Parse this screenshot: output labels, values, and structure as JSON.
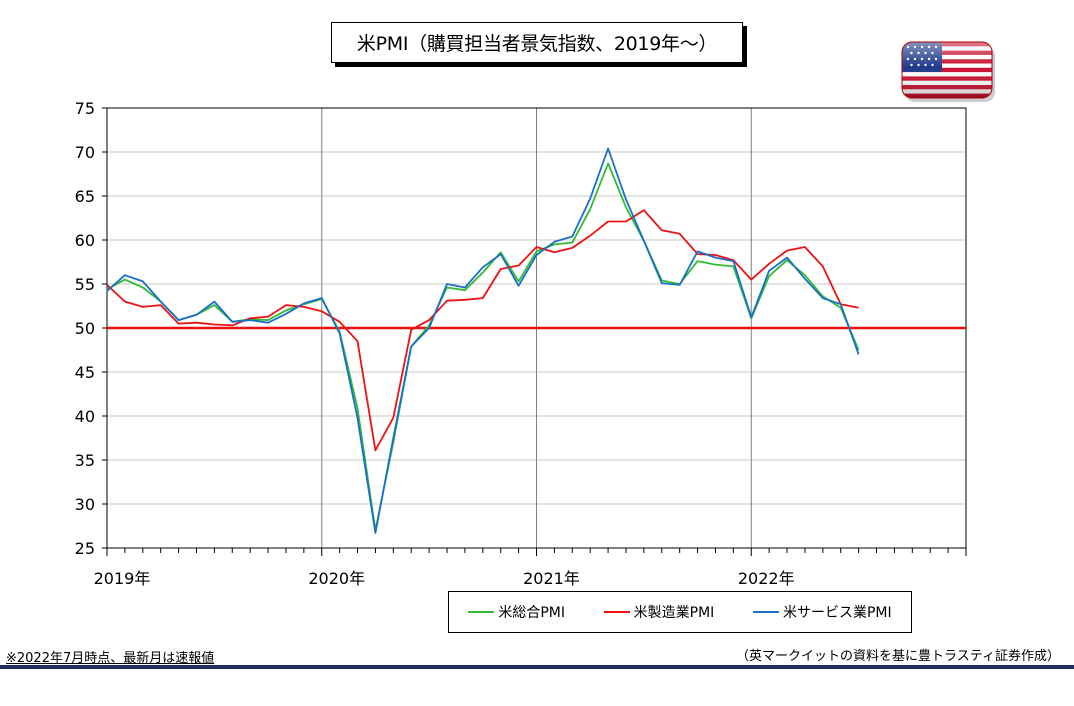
{
  "title": "米PMI（購買担当者景気指数、2019年～）",
  "footnote": "※2022年7月時点、最新月は速報値",
  "source": "（英マークイットの資料を基に豊トラスティ証券作成）",
  "flag_icon": "us-flag-icon",
  "colors": {
    "composite": "#33bb33",
    "manufacturing": "#ee1111",
    "services": "#1a6fc9",
    "reference": "#ee1111",
    "bottom_bar": "#1d2f5c"
  },
  "chart_data": {
    "type": "line",
    "title": "米PMI（購買担当者景気指数、2019年～）",
    "xlabel": "",
    "ylabel": "",
    "x_start": "2019-01",
    "x_end": "2022-12",
    "x_tick_labels": [
      "2019年",
      "2020年",
      "2021年",
      "2022年"
    ],
    "ylim": [
      25,
      75
    ],
    "y_ticks": [
      25,
      30,
      35,
      40,
      45,
      50,
      55,
      60,
      65,
      70,
      75
    ],
    "grid": true,
    "legend_position": "bottom-right",
    "reference_line": 50,
    "x": [
      "2019-01",
      "2019-02",
      "2019-03",
      "2019-04",
      "2019-05",
      "2019-06",
      "2019-07",
      "2019-08",
      "2019-09",
      "2019-10",
      "2019-11",
      "2019-12",
      "2020-01",
      "2020-02",
      "2020-03",
      "2020-04",
      "2020-05",
      "2020-06",
      "2020-07",
      "2020-08",
      "2020-09",
      "2020-10",
      "2020-11",
      "2020-12",
      "2021-01",
      "2021-02",
      "2021-03",
      "2021-04",
      "2021-05",
      "2021-06",
      "2021-07",
      "2021-08",
      "2021-09",
      "2021-10",
      "2021-11",
      "2021-12",
      "2022-01",
      "2022-02",
      "2022-03",
      "2022-04",
      "2022-05",
      "2022-06",
      "2022-07"
    ],
    "series": [
      {
        "name": "米総合PMI",
        "key": "composite",
        "values": [
          54.4,
          55.5,
          54.6,
          53.0,
          50.9,
          51.5,
          52.6,
          50.7,
          51.0,
          50.9,
          52.0,
          52.7,
          53.3,
          49.6,
          40.9,
          27.0,
          37.0,
          47.9,
          50.3,
          54.6,
          54.3,
          56.3,
          58.6,
          55.3,
          58.7,
          59.5,
          59.7,
          63.5,
          68.7,
          63.7,
          59.9,
          55.4,
          55.0,
          57.6,
          57.2,
          57.0,
          51.1,
          55.9,
          57.7,
          56.0,
          53.6,
          52.3,
          47.5
        ]
      },
      {
        "name": "米製造業PMI",
        "key": "manufacturing",
        "values": [
          54.9,
          53.0,
          52.4,
          52.6,
          50.5,
          50.6,
          50.4,
          50.3,
          51.1,
          51.3,
          52.6,
          52.4,
          51.9,
          50.7,
          48.5,
          36.1,
          39.8,
          49.8,
          50.9,
          53.1,
          53.2,
          53.4,
          56.7,
          57.1,
          59.2,
          58.6,
          59.1,
          60.5,
          62.1,
          62.1,
          63.4,
          61.1,
          60.7,
          58.4,
          58.3,
          57.7,
          55.5,
          57.3,
          58.8,
          59.2,
          57.0,
          52.7,
          52.3
        ]
      },
      {
        "name": "米サービス業PMI",
        "key": "services",
        "values": [
          54.2,
          56.0,
          55.3,
          53.0,
          50.9,
          51.5,
          53.0,
          50.7,
          50.9,
          50.6,
          51.6,
          52.8,
          53.4,
          49.4,
          39.8,
          26.7,
          37.5,
          47.9,
          50.0,
          55.0,
          54.6,
          56.9,
          58.4,
          54.8,
          58.3,
          59.8,
          60.4,
          64.7,
          70.4,
          64.6,
          59.9,
          55.1,
          54.9,
          58.7,
          58.0,
          57.6,
          51.2,
          56.5,
          58.0,
          55.6,
          53.4,
          52.7,
          47.0
        ]
      }
    ]
  },
  "legend": [
    {
      "label": "米総合PMI",
      "key": "composite"
    },
    {
      "label": "米製造業PMI",
      "key": "manufacturing"
    },
    {
      "label": "米サービス業PMI",
      "key": "services"
    }
  ]
}
